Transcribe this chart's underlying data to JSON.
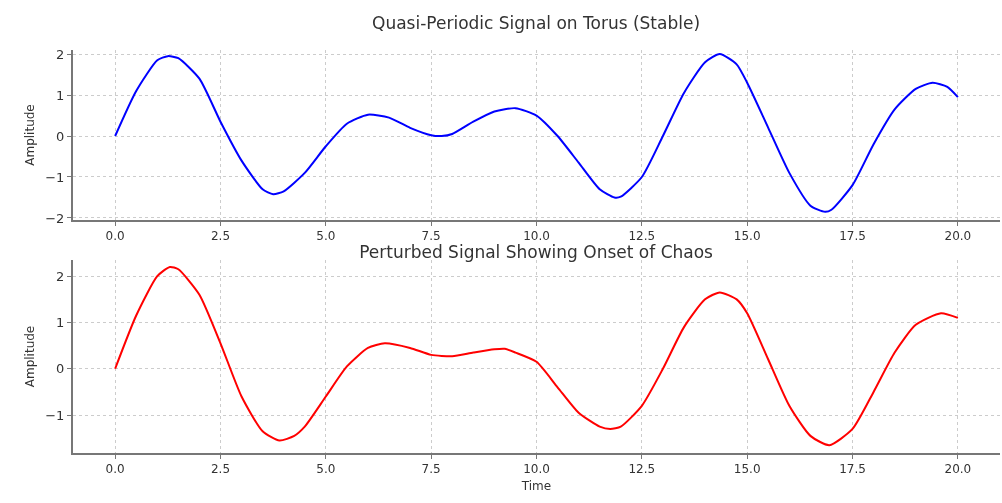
{
  "chart_data": [
    {
      "type": "line",
      "title": "Quasi-Periodic Signal on Torus (Stable)",
      "ylabel": "Amplitude",
      "grid": true,
      "x": [
        0,
        0.5,
        1.0,
        1.25,
        1.5,
        2.0,
        2.5,
        3.0,
        3.5,
        3.75,
        4.0,
        4.5,
        5.0,
        5.5,
        6.0,
        6.5,
        7.0,
        7.5,
        7.75,
        8.0,
        8.5,
        9.0,
        9.5,
        10.0,
        10.5,
        11.0,
        11.5,
        11.85,
        12.0,
        12.5,
        13.0,
        13.5,
        14.0,
        14.35,
        14.75,
        15.0,
        15.5,
        16.0,
        16.5,
        16.85,
        17.0,
        17.5,
        18.0,
        18.5,
        19.0,
        19.4,
        19.75,
        20.0
      ],
      "series": [
        {
          "color": "#0000ff",
          "values": [
            0,
            1.1,
            1.85,
            1.95,
            1.9,
            1.4,
            0.35,
            -0.6,
            -1.3,
            -1.42,
            -1.35,
            -0.9,
            -0.25,
            0.3,
            0.52,
            0.45,
            0.2,
            0.02,
            0.0,
            0.05,
            0.35,
            0.6,
            0.68,
            0.5,
            0.0,
            -0.65,
            -1.3,
            -1.5,
            -1.48,
            -1.0,
            0.0,
            1.05,
            1.8,
            2.0,
            1.75,
            1.3,
            0.2,
            -0.9,
            -1.7,
            -1.85,
            -1.8,
            -1.2,
            -0.2,
            0.65,
            1.15,
            1.3,
            1.2,
            0.95
          ]
        }
      ],
      "xlim": [
        -1,
        21
      ],
      "ylim": [
        -2.05,
        2.1
      ],
      "xticks": [
        {
          "value": 0,
          "label": "0.0"
        },
        {
          "value": 2.5,
          "label": "2.5"
        },
        {
          "value": 5,
          "label": "5.0"
        },
        {
          "value": 7.5,
          "label": "7.5"
        },
        {
          "value": 10,
          "label": "10.0"
        },
        {
          "value": 12.5,
          "label": "12.5"
        },
        {
          "value": 15,
          "label": "15.0"
        },
        {
          "value": 17.5,
          "label": "17.5"
        },
        {
          "value": 20,
          "label": "20.0"
        }
      ],
      "yticks": [
        -2,
        -1,
        0,
        1,
        2
      ]
    },
    {
      "type": "line",
      "title": "Perturbed Signal Showing Onset of Chaos",
      "xlabel": "Time",
      "ylabel": "Amplitude",
      "grid": true,
      "x": [
        0,
        0.5,
        1.0,
        1.3,
        1.5,
        2.0,
        2.5,
        3.0,
        3.5,
        3.9,
        4.25,
        4.5,
        5.0,
        5.5,
        6.0,
        6.4,
        7.0,
        7.5,
        8.0,
        8.5,
        9.0,
        9.25,
        9.5,
        10.0,
        10.5,
        11.0,
        11.5,
        11.75,
        12.0,
        12.5,
        13.0,
        13.5,
        14.0,
        14.35,
        14.75,
        15.0,
        15.5,
        16.0,
        16.5,
        16.95,
        17.5,
        18.0,
        18.5,
        19.0,
        19.6,
        20.0
      ],
      "series": [
        {
          "color": "#ff0000",
          "values": [
            0,
            1.15,
            2.0,
            2.2,
            2.15,
            1.6,
            0.55,
            -0.6,
            -1.35,
            -1.55,
            -1.45,
            -1.25,
            -0.6,
            0.05,
            0.45,
            0.55,
            0.45,
            0.3,
            0.27,
            0.35,
            0.42,
            0.43,
            0.35,
            0.15,
            -0.4,
            -0.95,
            -1.25,
            -1.3,
            -1.25,
            -0.8,
            0.0,
            0.9,
            1.5,
            1.65,
            1.5,
            1.2,
            0.2,
            -0.8,
            -1.45,
            -1.65,
            -1.3,
            -0.5,
            0.35,
            0.95,
            1.2,
            1.1
          ]
        }
      ],
      "xlim": [
        -1,
        21
      ],
      "ylim": [
        -1.82,
        2.35
      ],
      "xticks": [
        {
          "value": 0,
          "label": "0.0"
        },
        {
          "value": 2.5,
          "label": "2.5"
        },
        {
          "value": 5,
          "label": "5.0"
        },
        {
          "value": 7.5,
          "label": "7.5"
        },
        {
          "value": 10,
          "label": "10.0"
        },
        {
          "value": 12.5,
          "label": "12.5"
        },
        {
          "value": 15,
          "label": "15.0"
        },
        {
          "value": 17.5,
          "label": "17.5"
        },
        {
          "value": 20,
          "label": "20.0"
        }
      ],
      "yticks": [
        -1,
        0,
        1,
        2
      ]
    }
  ]
}
